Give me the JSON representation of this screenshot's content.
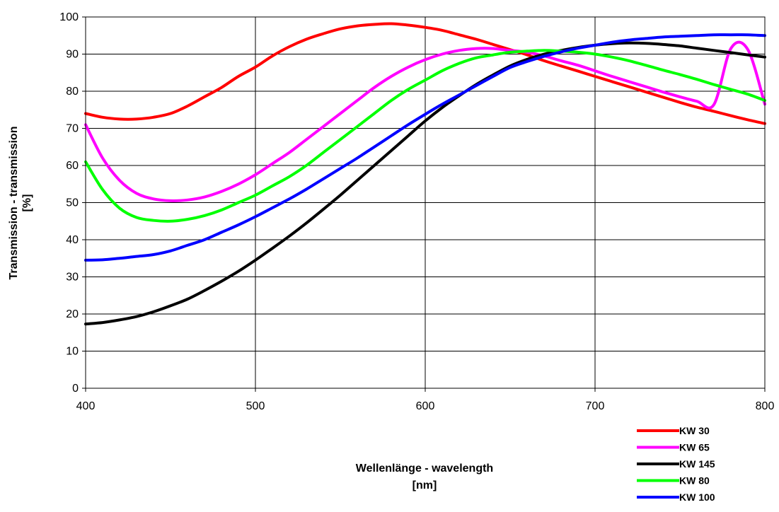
{
  "chart_data": {
    "type": "line",
    "title": "",
    "xlabel": [
      "Wellenlänge - wavelength",
      "[nm]"
    ],
    "ylabel": [
      "Transmission - transmission",
      "[%]"
    ],
    "xlim": [
      400,
      800
    ],
    "ylim": [
      0,
      100
    ],
    "xticks": [
      400,
      500,
      600,
      700,
      800
    ],
    "yticks": [
      0,
      10,
      20,
      30,
      40,
      50,
      60,
      70,
      80,
      90,
      100
    ],
    "grid": true,
    "legend_position": "bottom-right",
    "series": [
      {
        "name": "KW 30",
        "color": "#ff0000",
        "x": [
          400,
          410,
          420,
          430,
          440,
          450,
          460,
          470,
          480,
          490,
          500,
          510,
          520,
          530,
          540,
          550,
          560,
          570,
          580,
          590,
          600,
          610,
          620,
          630,
          640,
          650,
          660,
          670,
          680,
          690,
          700,
          710,
          720,
          730,
          740,
          750,
          760,
          770,
          780,
          790,
          800
        ],
        "y": [
          74,
          73,
          72.5,
          72.5,
          73,
          74,
          76,
          78.5,
          81,
          84,
          86.5,
          89.5,
          92,
          94,
          95.5,
          96.8,
          97.6,
          98,
          98.2,
          97.8,
          97.2,
          96.4,
          95.2,
          94,
          92.6,
          91.2,
          89.8,
          88.2,
          86.8,
          85.4,
          84,
          82.6,
          81.2,
          79.8,
          78.4,
          77,
          75.7,
          74.6,
          73.4,
          72.3,
          71.3
        ]
      },
      {
        "name": "KW 65",
        "color": "#ff00ff",
        "x": [
          400,
          410,
          420,
          430,
          440,
          450,
          460,
          470,
          480,
          490,
          500,
          510,
          520,
          530,
          540,
          550,
          560,
          570,
          580,
          590,
          600,
          610,
          620,
          630,
          640,
          650,
          660,
          670,
          680,
          690,
          700,
          710,
          720,
          730,
          740,
          750,
          760,
          770,
          780,
          790,
          800
        ],
        "y": [
          71,
          62,
          56,
          52.5,
          51,
          50.5,
          50.7,
          51.5,
          53,
          55,
          57.5,
          60.5,
          63.5,
          67,
          70.5,
          74,
          77.5,
          81,
          84,
          86.5,
          88.5,
          90,
          91,
          91.5,
          91.5,
          91,
          90.5,
          89.5,
          88.2,
          87,
          85.5,
          84,
          82.6,
          81.2,
          79.8,
          78.5,
          77.3,
          76.4,
          91.5,
          91.2,
          76.5
        ]
      },
      {
        "name": "KW 145",
        "color": "#000000",
        "x": [
          400,
          410,
          420,
          430,
          440,
          450,
          460,
          470,
          480,
          490,
          500,
          510,
          520,
          530,
          540,
          550,
          560,
          570,
          580,
          590,
          600,
          610,
          620,
          630,
          640,
          650,
          660,
          670,
          680,
          690,
          700,
          710,
          720,
          730,
          740,
          750,
          760,
          770,
          780,
          790,
          800
        ],
        "y": [
          17.3,
          17.7,
          18.4,
          19.3,
          20.6,
          22.2,
          24,
          26.3,
          28.8,
          31.5,
          34.5,
          37.7,
          41,
          44.5,
          48.2,
          52,
          56,
          60,
          64,
          68,
          72,
          75.6,
          78.8,
          81.8,
          84.4,
          86.8,
          88.6,
          90,
          91,
          91.8,
          92.4,
          92.8,
          93,
          92.9,
          92.6,
          92.2,
          91.6,
          91,
          90.4,
          89.8,
          89.2
        ]
      },
      {
        "name": "KW 80",
        "color": "#00ff00",
        "x": [
          400,
          410,
          420,
          430,
          440,
          450,
          460,
          470,
          480,
          490,
          500,
          510,
          520,
          530,
          540,
          550,
          560,
          570,
          580,
          590,
          600,
          610,
          620,
          630,
          640,
          650,
          660,
          670,
          680,
          690,
          700,
          710,
          720,
          730,
          740,
          750,
          760,
          770,
          780,
          790,
          800
        ],
        "y": [
          61,
          53.5,
          48.5,
          46,
          45.2,
          45,
          45.5,
          46.5,
          48,
          50,
          52,
          54.5,
          57,
          60,
          63.5,
          67,
          70.5,
          74,
          77.5,
          80.5,
          83,
          85.5,
          87.5,
          89,
          89.8,
          90.5,
          90.8,
          91,
          90.8,
          90.5,
          90,
          89.2,
          88.2,
          87,
          85.7,
          84.5,
          83.2,
          81.8,
          80.5,
          79.2,
          77.5
        ]
      },
      {
        "name": "KW 100",
        "color": "#0000ff",
        "x": [
          400,
          410,
          420,
          430,
          440,
          450,
          460,
          470,
          480,
          490,
          500,
          510,
          520,
          530,
          540,
          550,
          560,
          570,
          580,
          590,
          600,
          610,
          620,
          630,
          640,
          650,
          660,
          670,
          680,
          690,
          700,
          710,
          720,
          730,
          740,
          750,
          760,
          770,
          780,
          790,
          800
        ],
        "y": [
          34.5,
          34.6,
          35,
          35.5,
          36,
          37,
          38.5,
          40,
          42,
          44,
          46.2,
          48.6,
          51,
          53.6,
          56.4,
          59.2,
          62,
          65,
          68,
          71,
          73.8,
          76.5,
          79,
          81.5,
          84,
          86.4,
          88,
          89.4,
          90.6,
          91.6,
          92.4,
          93.2,
          93.8,
          94.2,
          94.6,
          94.8,
          95,
          95.2,
          95.2,
          95.2,
          95
        ]
      }
    ]
  }
}
